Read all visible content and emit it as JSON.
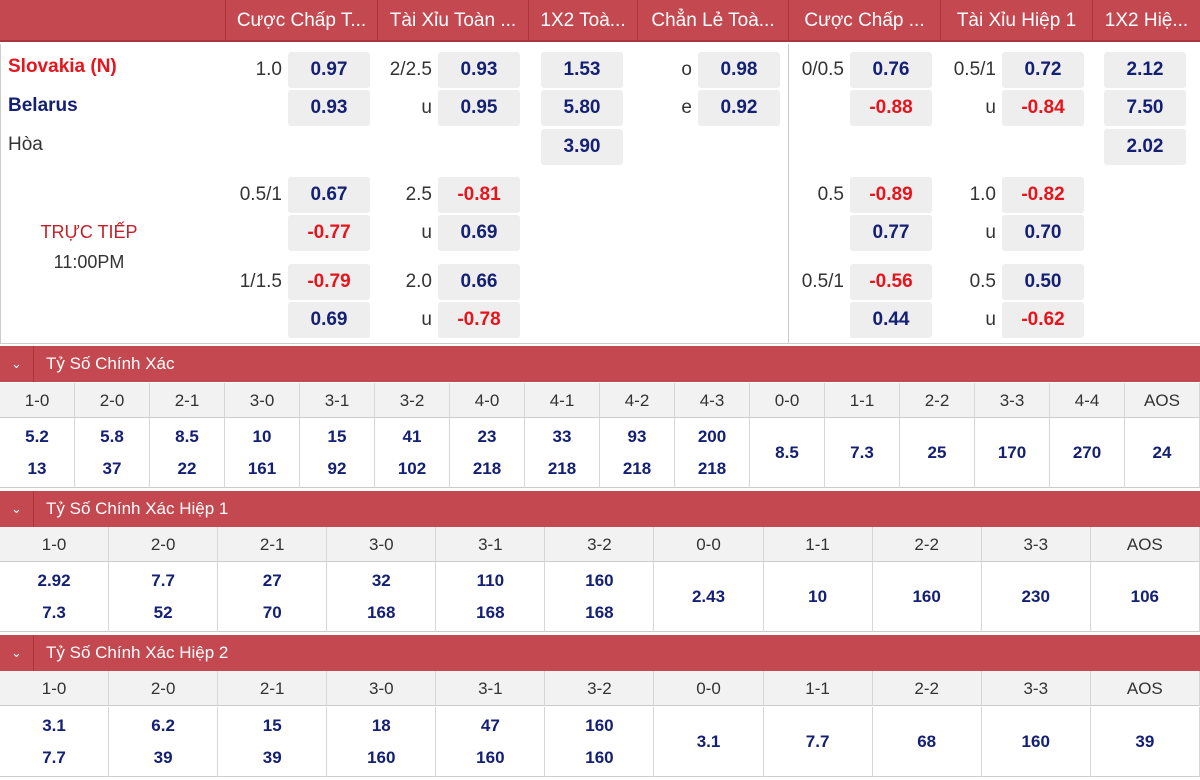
{
  "headers": [
    "Cược Chấp T...",
    "Tài Xỉu Toàn ...",
    "1X2 Toà...",
    "Chẳn Lẻ Toà...",
    "Cược Chấp ...",
    "Tài Xỉu Hiệp 1",
    "1X2 Hiệ..."
  ],
  "match": {
    "home": "Slovakia (N)",
    "away": "Belarus",
    "draw": "Hòa",
    "status": "TRỰC TIẾP",
    "time": "11:00PM",
    "home_color": "#e8141c",
    "away_color": "#142073"
  },
  "markets": {
    "ah_ft": [
      [
        [
          "1.0",
          "0.97"
        ],
        [
          "",
          "0.93"
        ]
      ],
      [
        [
          "0.5/1",
          "0.67"
        ],
        [
          "",
          "-0.77"
        ]
      ],
      [
        [
          "1/1.5",
          "-0.79"
        ],
        [
          "",
          "0.69"
        ]
      ]
    ],
    "ou_ft": [
      [
        [
          "2/2.5",
          "0.93"
        ],
        [
          "u",
          "0.95"
        ]
      ],
      [
        [
          "2.5",
          "-0.81"
        ],
        [
          "u",
          "0.69"
        ]
      ],
      [
        [
          "2.0",
          "0.66"
        ],
        [
          "u",
          "-0.78"
        ]
      ]
    ],
    "x12_ft": [
      [
        [
          "",
          "1.53"
        ],
        [
          "",
          "5.80"
        ],
        [
          "",
          "3.90"
        ]
      ]
    ],
    "oe_ft": [
      [
        [
          "o",
          "0.98"
        ],
        [
          "e",
          "0.92"
        ]
      ]
    ],
    "ah_h1": [
      [
        [
          "0/0.5",
          "0.76"
        ],
        [
          "",
          "-0.88"
        ]
      ],
      [
        [
          "0.5",
          "-0.89"
        ],
        [
          "",
          "0.77"
        ]
      ],
      [
        [
          "0.5/1",
          "-0.56"
        ],
        [
          "",
          "0.44"
        ]
      ]
    ],
    "ou_h1": [
      [
        [
          "0.5/1",
          "0.72"
        ],
        [
          "u",
          "-0.84"
        ]
      ],
      [
        [
          "1.0",
          "-0.82"
        ],
        [
          "u",
          "0.70"
        ]
      ],
      [
        [
          "0.5",
          "0.50"
        ],
        [
          "u",
          "-0.62"
        ]
      ]
    ],
    "x12_h1": [
      [
        [
          "",
          "2.12"
        ],
        [
          "",
          "7.50"
        ],
        [
          "",
          "2.02"
        ]
      ]
    ]
  },
  "sections": [
    {
      "title": "Tỷ Số Chính Xác",
      "cols": [
        [
          "1-0",
          "5.2",
          "13"
        ],
        [
          "2-0",
          "5.8",
          "37"
        ],
        [
          "2-1",
          "8.5",
          "22"
        ],
        [
          "3-0",
          "10",
          "161"
        ],
        [
          "3-1",
          "15",
          "92"
        ],
        [
          "3-2",
          "41",
          "102"
        ],
        [
          "4-0",
          "23",
          "218"
        ],
        [
          "4-1",
          "33",
          "218"
        ],
        [
          "4-2",
          "93",
          "218"
        ],
        [
          "4-3",
          "200",
          "218"
        ],
        [
          "0-0",
          "8.5"
        ],
        [
          "1-1",
          "7.3"
        ],
        [
          "2-2",
          "25"
        ],
        [
          "3-3",
          "170"
        ],
        [
          "4-4",
          "270"
        ],
        [
          "AOS",
          "24"
        ]
      ]
    },
    {
      "title": "Tỷ Số Chính Xác Hiệp 1",
      "cols": [
        [
          "1-0",
          "2.92",
          "7.3"
        ],
        [
          "2-0",
          "7.7",
          "52"
        ],
        [
          "2-1",
          "27",
          "70"
        ],
        [
          "3-0",
          "32",
          "168"
        ],
        [
          "3-1",
          "110",
          "168"
        ],
        [
          "3-2",
          "160",
          "168"
        ],
        [
          "0-0",
          "2.43"
        ],
        [
          "1-1",
          "10"
        ],
        [
          "2-2",
          "160"
        ],
        [
          "3-3",
          "230"
        ],
        [
          "AOS",
          "106"
        ]
      ]
    },
    {
      "title": "Tỷ Số Chính Xác Hiệp 2",
      "cols": [
        [
          "1-0",
          "3.1",
          "7.7"
        ],
        [
          "2-0",
          "6.2",
          "39"
        ],
        [
          "2-1",
          "15",
          "39"
        ],
        [
          "3-0",
          "18",
          "160"
        ],
        [
          "3-1",
          "47",
          "160"
        ],
        [
          "3-2",
          "160",
          "160"
        ],
        [
          "0-0",
          "3.1"
        ],
        [
          "1-1",
          "7.7"
        ],
        [
          "2-2",
          "68"
        ],
        [
          "3-3",
          "160"
        ],
        [
          "AOS",
          "39"
        ]
      ]
    }
  ]
}
